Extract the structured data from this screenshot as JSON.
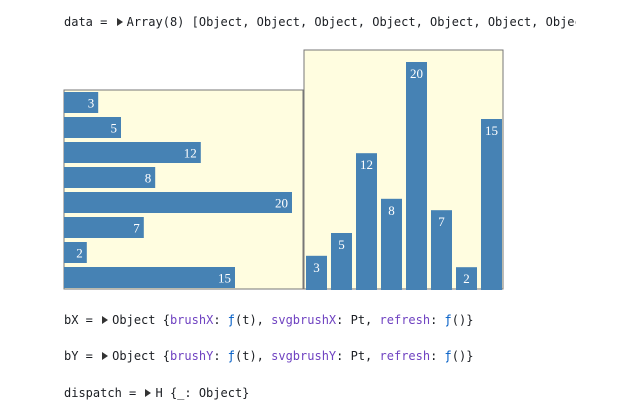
{
  "cells": {
    "data": {
      "name": "data",
      "eq": " = ",
      "type": "Array(8)",
      "preview": " [Object, Object, Object, Object, Object, Object, Object, Object]"
    },
    "bx": {
      "name": "bX",
      "eq": " = ",
      "type": "Object ",
      "open": "{",
      "k1": "brushX",
      "sep1": ": ",
      "v1f": "ƒ",
      "v1a": "(t), ",
      "k2": "svgbrushX",
      "sep2": ": ",
      "v2": "Pt, ",
      "k3": "refresh",
      "sep3": ": ",
      "v3f": "ƒ",
      "v3a": "()",
      "close": "}"
    },
    "by": {
      "name": "bY",
      "eq": " = ",
      "type": "Object ",
      "open": "{",
      "k1": "brushY",
      "sep1": ": ",
      "v1f": "ƒ",
      "v1a": "(t), ",
      "k2": "svgbrushY",
      "sep2": ": ",
      "v2": "Pt, ",
      "k3": "refresh",
      "sep3": ": ",
      "v3f": "ƒ",
      "v3a": "()",
      "close": "}"
    },
    "dispatch": {
      "name": "dispatch",
      "eq": " = ",
      "type": "H ",
      "rest": "{_: Object}"
    }
  },
  "chart_data": {
    "type": "bar",
    "values": [
      3,
      5,
      12,
      8,
      20,
      7,
      2,
      15
    ],
    "max": 20,
    "bar_color": "#4682b4",
    "brush_color": "#fffde0",
    "brush_border": "#777777"
  }
}
